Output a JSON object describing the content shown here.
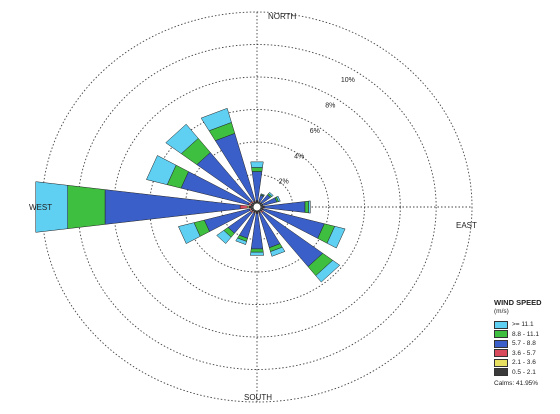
{
  "chart_data": {
    "type": "windrose",
    "directions": [
      "N",
      "NNE",
      "NE",
      "ENE",
      "E",
      "ESE",
      "SE",
      "SSE",
      "S",
      "SSW",
      "SW",
      "WSW",
      "W",
      "WNW",
      "NW",
      "NNW"
    ],
    "direction_angles_deg": [
      0,
      22.5,
      45,
      67.5,
      90,
      112.5,
      135,
      157.5,
      180,
      202.5,
      225,
      247.5,
      270,
      292.5,
      315,
      337.5
    ],
    "series": [
      {
        "name": "0.5 - 2.1",
        "color": "#3a3a3a",
        "values": [
          0.1,
          0.1,
          0.1,
          0.1,
          0.1,
          0.1,
          0.1,
          0.1,
          0.1,
          0.1,
          0.1,
          0.1,
          0.2,
          0.1,
          0.1,
          0.1
        ]
      },
      {
        "name": "2.1 - 3.6",
        "color": "#e8e060",
        "values": [
          0,
          0,
          0,
          0,
          0,
          0,
          0,
          0,
          0,
          0,
          0,
          0,
          0.1,
          0,
          0,
          0
        ]
      },
      {
        "name": "3.6 - 5.7",
        "color": "#d94a5c",
        "values": [
          0.05,
          0,
          0,
          0,
          0.05,
          0.05,
          0.1,
          0.05,
          0.05,
          0.05,
          0.1,
          0.1,
          0.4,
          0.15,
          0.1,
          0.05
        ]
      },
      {
        "name": "5.7 - 8.8",
        "color": "#3a5fc8",
        "values": [
          1.8,
          0.4,
          0.6,
          0.8,
          2.3,
          3.5,
          4.2,
          2.2,
          2.2,
          1.6,
          1.6,
          2.6,
          7.6,
          3.9,
          3.8,
          4.3
        ]
      },
      {
        "name": "8.8 - 11.1",
        "color": "#3fbf3f",
        "values": [
          0.25,
          0.05,
          0.1,
          0.1,
          0.2,
          0.6,
          0.7,
          0.25,
          0.2,
          0.2,
          0.3,
          0.6,
          2.1,
          0.8,
          1.1,
          0.7
        ]
      },
      {
        "name": ">= 11.1",
        "color": "#5fcff2",
        "values": [
          0.35,
          0.05,
          0.1,
          0.1,
          0.1,
          0.6,
          0.5,
          0.3,
          0.2,
          0.2,
          0.5,
          0.9,
          1.8,
          1.2,
          1.1,
          0.9
        ]
      }
    ],
    "rings": [
      2,
      4,
      6,
      8,
      10
    ],
    "ring_labels": [
      "2%",
      "4%",
      "6%",
      "8%",
      "10%"
    ],
    "outer_ring_value": 12,
    "axis_labels": {
      "north": "NORTH",
      "south": "SOUTH",
      "east": "EAST",
      "west": "WEST"
    },
    "legend_position": "bottom-right"
  },
  "legend": {
    "title": "WIND SPEED",
    "units": "(m/s)",
    "items": [
      {
        "label": ">= 11.1",
        "color": "#5fcff2"
      },
      {
        "label": "8.8 - 11.1",
        "color": "#3fbf3f"
      },
      {
        "label": "5.7 - 8.8",
        "color": "#3a5fc8"
      },
      {
        "label": "3.6 - 5.7",
        "color": "#d94a5c"
      },
      {
        "label": "2.1 - 3.6",
        "color": "#e8e060"
      },
      {
        "label": "0.5 - 2.1",
        "color": "#3a3a3a"
      }
    ],
    "calms": "Calms: 41.95%"
  }
}
